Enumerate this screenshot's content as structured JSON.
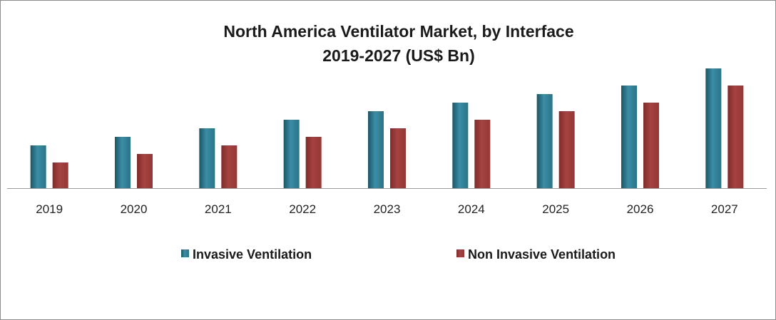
{
  "chart_data": {
    "type": "bar",
    "title": "North America Ventilator Market, by Interface",
    "subtitle": "2019-2027 (US$ Bn)",
    "categories": [
      "2019",
      "2020",
      "2021",
      "2022",
      "2023",
      "2024",
      "2025",
      "2026",
      "2027"
    ],
    "series": [
      {
        "name": "Invasive Ventilation",
        "color": "#2a7387",
        "values": [
          60,
          72,
          84,
          96,
          108,
          120,
          132,
          144,
          168
        ]
      },
      {
        "name": "Non Invasive Ventilation",
        "color": "#953735",
        "values": [
          36,
          48,
          60,
          72,
          84,
          96,
          108,
          120,
          144
        ]
      }
    ],
    "ylim": [
      0,
      180
    ],
    "xlabel": "",
    "ylabel": "",
    "grid": false,
    "legend_position": "bottom"
  }
}
